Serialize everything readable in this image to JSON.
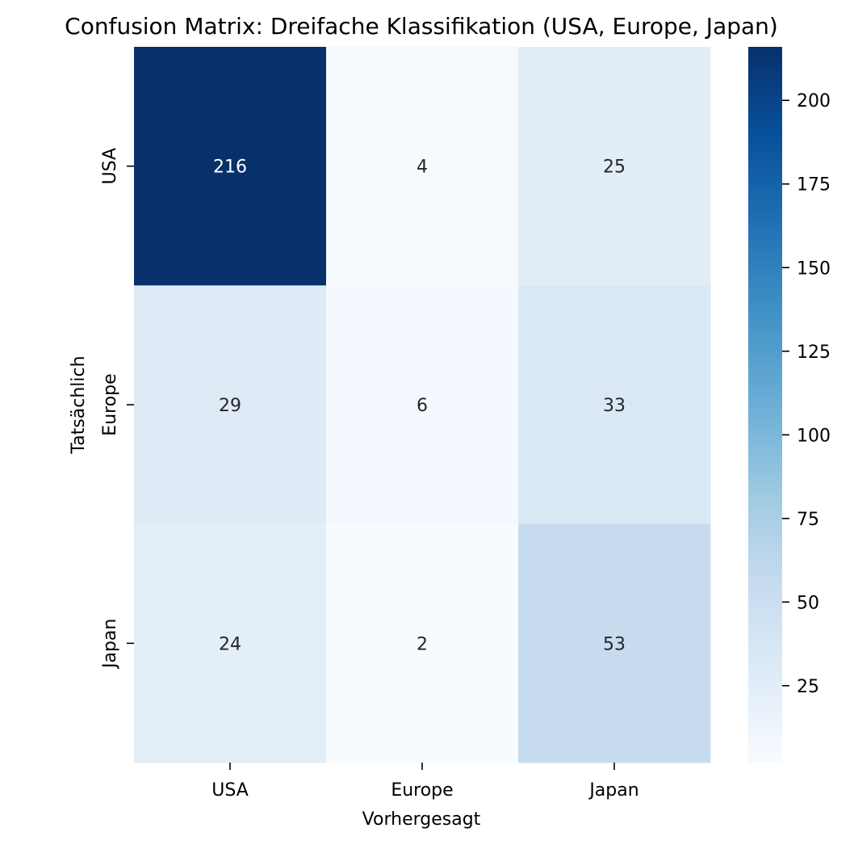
{
  "chart_data": {
    "type": "heatmap",
    "title": "Confusion Matrix: Dreifache Klassifikation (USA, Europe, Japan)",
    "xlabel": "Vorhergesagt",
    "ylabel": "Tatsächlich",
    "x_categories": [
      "USA",
      "Europe",
      "Japan"
    ],
    "y_categories": [
      "USA",
      "Europe",
      "Japan"
    ],
    "values": [
      [
        216,
        4,
        25
      ],
      [
        29,
        6,
        33
      ],
      [
        24,
        2,
        53
      ]
    ],
    "colormap": "Blues",
    "color_range": [
      2,
      216
    ],
    "colorbar_ticks": [
      25,
      50,
      75,
      100,
      125,
      150,
      175,
      200
    ],
    "annotations": true,
    "grid": false
  }
}
